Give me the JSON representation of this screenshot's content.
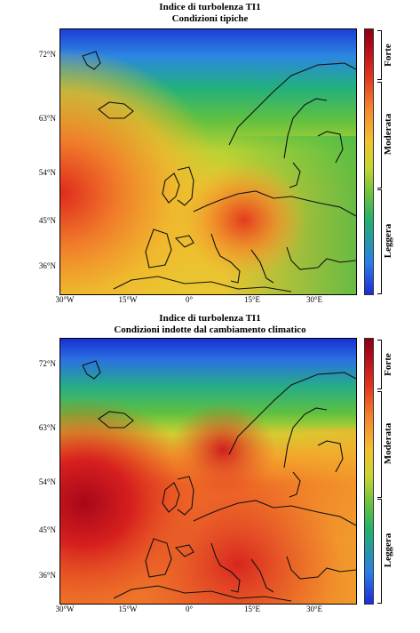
{
  "panels": [
    {
      "title_line1": "Indice di turbolenza TI1",
      "title_line2": "Condizioni tipiche",
      "lat_labels": [
        "72°N",
        "63°N",
        "54°N",
        "45°N",
        "36°N"
      ],
      "lon_labels": [
        "30°W",
        "15°W",
        "0°",
        "15°E",
        "30°E"
      ],
      "colorbar_labels": [
        "Forte",
        "Moderata",
        "Leggera"
      ]
    },
    {
      "title_line1": "Indice di turbolenza TI1",
      "title_line2": "Condizioni indotte dal cambiamento climatico",
      "lat_labels": [
        "72°N",
        "63°N",
        "54°N",
        "45°N",
        "36°N"
      ],
      "lon_labels": [
        "30°W",
        "15°W",
        "0°",
        "15°E",
        "30°E"
      ],
      "colorbar_labels": [
        "Forte",
        "Moderata",
        "Leggera"
      ]
    }
  ],
  "colors": {
    "low": "#1d2cd8",
    "light": "#1fb26c",
    "moderate": "#f3c12f",
    "strong": "#b0081a"
  }
}
